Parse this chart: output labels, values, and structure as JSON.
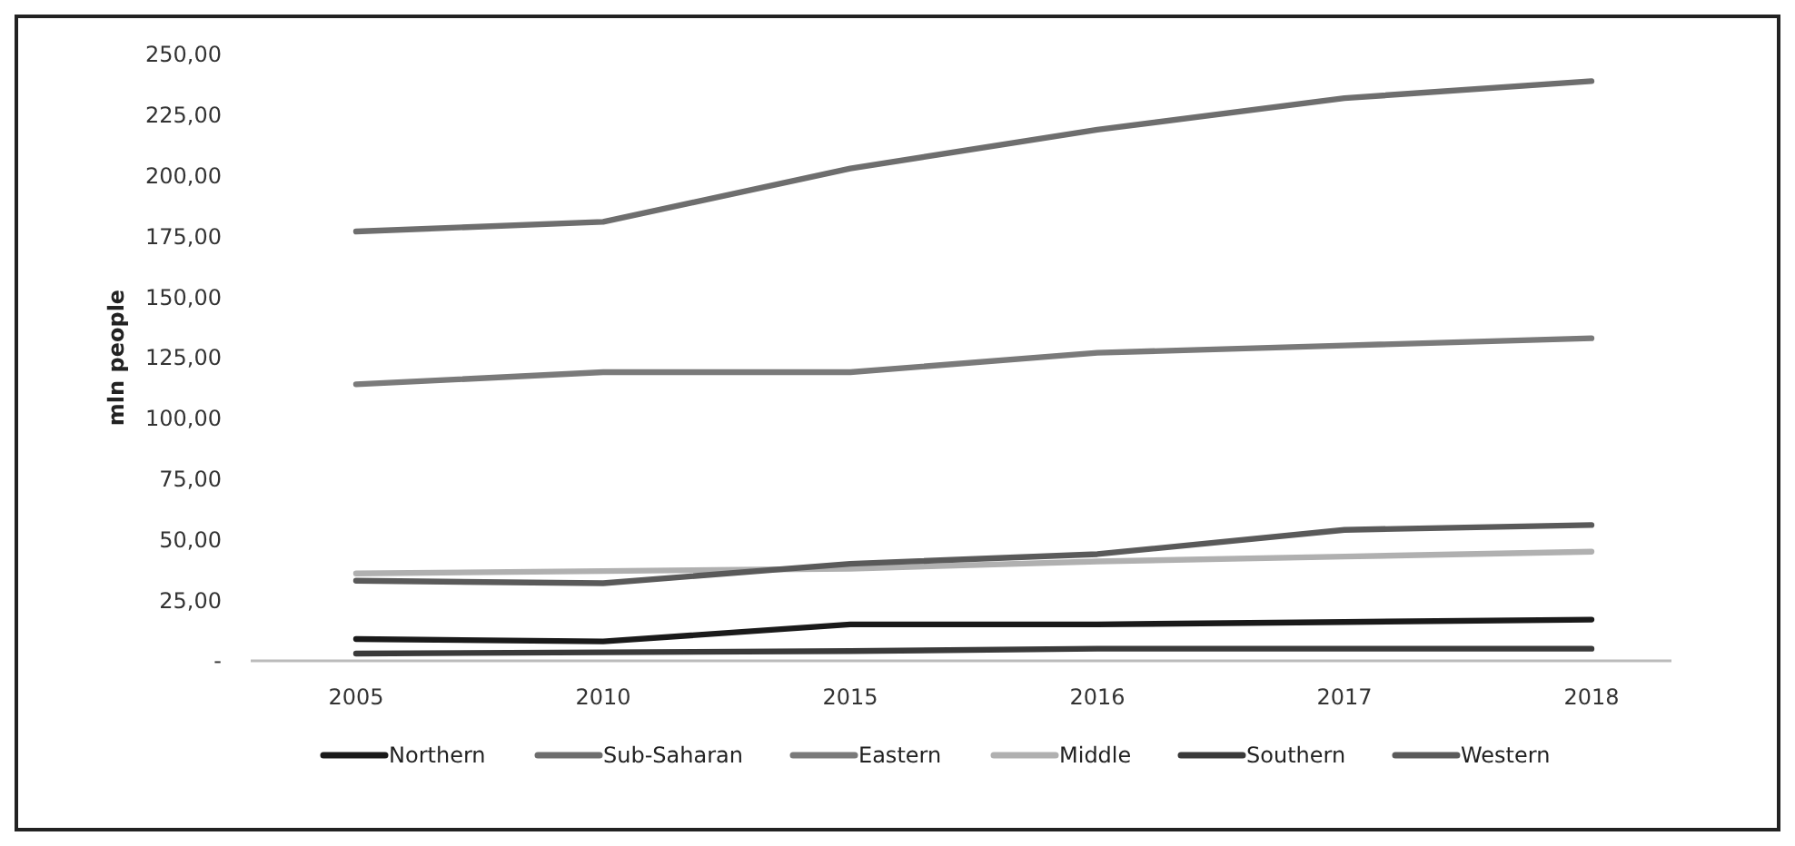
{
  "chart_data": {
    "type": "line",
    "ylabel": "mln people",
    "categories": [
      "2005",
      "2010",
      "2015",
      "2016",
      "2017",
      "2018"
    ],
    "series": [
      {
        "name": "Northern",
        "color": "#1a1a1a",
        "values": [
          9,
          8,
          15,
          15,
          16,
          17
        ]
      },
      {
        "name": "Sub-Saharan",
        "color": "#6e6e6e",
        "values": [
          177,
          181,
          203,
          219,
          232,
          239
        ]
      },
      {
        "name": "Eastern",
        "color": "#7a7a7a",
        "values": [
          114,
          119,
          119,
          127,
          130,
          133
        ]
      },
      {
        "name": "Middle",
        "color": "#b0b0b0",
        "values": [
          36,
          37,
          38,
          41,
          43,
          45
        ]
      },
      {
        "name": "Southern",
        "color": "#3a3a3a",
        "values": [
          3,
          3.5,
          4,
          5,
          5,
          5
        ]
      },
      {
        "name": "Western",
        "color": "#5a5a5a",
        "values": [
          33,
          32,
          40,
          44,
          54,
          56
        ]
      }
    ],
    "ylim": [
      0,
      250
    ],
    "yticks": [
      {
        "value": 0,
        "label": "-"
      },
      {
        "value": 25,
        "label": "25,00"
      },
      {
        "value": 50,
        "label": "50,00"
      },
      {
        "value": 75,
        "label": "75,00"
      },
      {
        "value": 100,
        "label": "100,00"
      },
      {
        "value": 125,
        "label": "125,00"
      },
      {
        "value": 150,
        "label": "150,00"
      },
      {
        "value": 175,
        "label": "175,00"
      },
      {
        "value": 200,
        "label": "200,00"
      },
      {
        "value": 225,
        "label": "225,00"
      },
      {
        "value": 250,
        "label": "250,00"
      }
    ],
    "grid": false,
    "legend": "bottom",
    "marker": "none",
    "line_style": "solid"
  }
}
